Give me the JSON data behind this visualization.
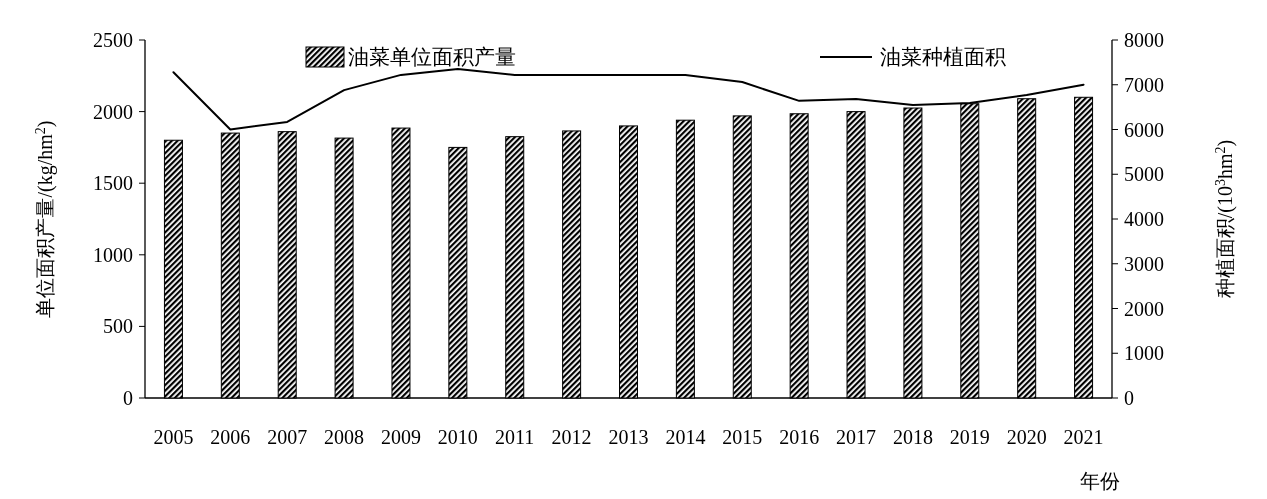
{
  "chart_data": {
    "type": "bar",
    "categories": [
      "2005",
      "2006",
      "2007",
      "2008",
      "2009",
      "2010",
      "2011",
      "2012",
      "2013",
      "2014",
      "2015",
      "2016",
      "2017",
      "2018",
      "2019",
      "2020",
      "2021"
    ],
    "xlabel": "年份",
    "ylabel": "单位面积产量/(kg/hm$^{2}$)",
    "y2label": "种植面积/(10$^{3}$hm$^{2}$)",
    "ylim": [
      0,
      2500
    ],
    "yticks": [
      0,
      500,
      1000,
      1500,
      2000,
      2500
    ],
    "y2lim": [
      0,
      8000
    ],
    "y2ticks": [
      0,
      1000,
      2000,
      3000,
      4000,
      5000,
      6000,
      7000,
      8000
    ],
    "legend": "top",
    "grid": false,
    "series": [
      {
        "name": "油菜单位面积产量",
        "color": "#000000",
        "values": [
          1800,
          1850,
          1860,
          1815,
          1885,
          1750,
          1825,
          1865,
          1900,
          1940,
          1970,
          1985,
          2000,
          2025,
          2055,
          2090,
          2100
        ]
      },
      {
        "name": "油菜种植面积",
        "type": "line",
        "axis": "y2",
        "color": "#000000",
        "values": [
          7280,
          6000,
          6170,
          6880,
          7220,
          7350,
          7220,
          7220,
          7220,
          7220,
          7060,
          6640,
          6680,
          6550,
          6590,
          6770,
          7000
        ]
      }
    ]
  }
}
